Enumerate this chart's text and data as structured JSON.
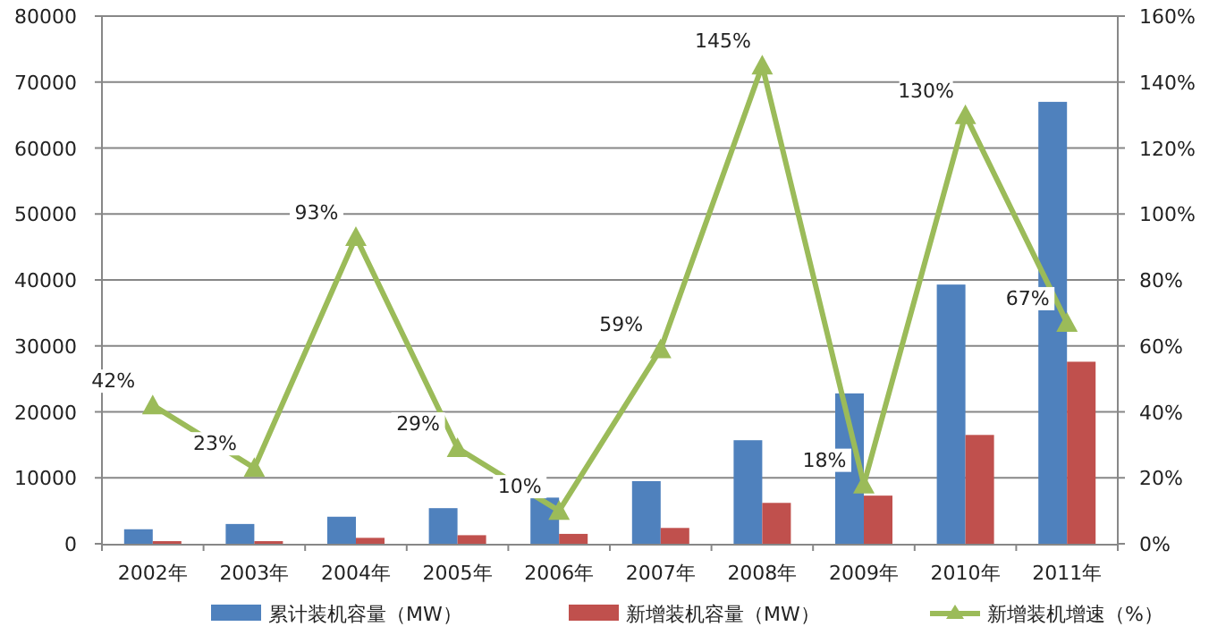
{
  "chart_data": {
    "type": "bar",
    "categories": [
      "2002年",
      "2003年",
      "2004年",
      "2005年",
      "2006年",
      "2007年",
      "2008年",
      "2009年",
      "2010年",
      "2011年"
    ],
    "series": [
      {
        "name": "累计装机容量（MW）",
        "color": "#4f81bd",
        "values": [
          2200,
          3000,
          4100,
          5400,
          7000,
          9500,
          15700,
          22800,
          39300,
          67000
        ]
      },
      {
        "name": "新增装机容量（MW）",
        "color": "#c0504d",
        "values": [
          400,
          400,
          900,
          1300,
          1500,
          2400,
          6200,
          7300,
          16500,
          27600
        ]
      },
      {
        "name": "新增装机增速（%）",
        "type": "line",
        "axis": "y2",
        "color": "#9bbb59",
        "marker": "triangle",
        "values": [
          42,
          23,
          93,
          29,
          10,
          59,
          145,
          18,
          130,
          67
        ],
        "value_labels": [
          "42%",
          "23%",
          "93%",
          "29%",
          "10%",
          "59%",
          "145%",
          "18%",
          "130%",
          "67%"
        ]
      }
    ],
    "ylim": [
      0,
      80000
    ],
    "yticks": [
      0,
      10000,
      20000,
      30000,
      40000,
      50000,
      60000,
      70000,
      80000
    ],
    "y2lim": [
      0,
      160
    ],
    "y2ticks": [
      {
        "value": 0,
        "label": "0%"
      },
      {
        "value": 20,
        "label": "20%"
      },
      {
        "value": 40,
        "label": "40%"
      },
      {
        "value": 60,
        "label": "60%"
      },
      {
        "value": 80,
        "label": "80%"
      },
      {
        "value": 100,
        "label": "100%"
      },
      {
        "value": 120,
        "label": "120%"
      },
      {
        "value": 140,
        "label": "140%"
      },
      {
        "value": 160,
        "label": "160%"
      }
    ],
    "grid": "y",
    "legend": "bottom"
  }
}
